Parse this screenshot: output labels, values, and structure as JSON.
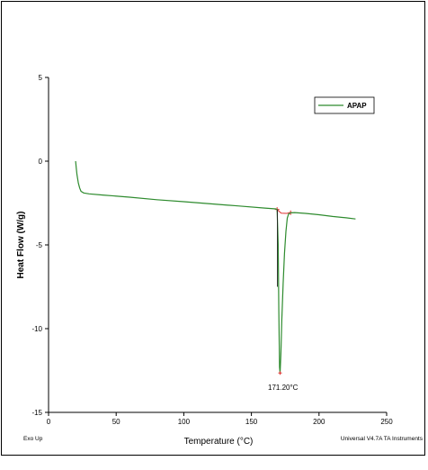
{
  "chart_data": {
    "type": "line",
    "xlabel": "Temperature (°C)",
    "ylabel": "Heat Flow (W/g)",
    "xlim": [
      0,
      250
    ],
    "ylim": [
      -15,
      5
    ],
    "x_ticks": [
      "0",
      "50",
      "100",
      "150",
      "200",
      "250"
    ],
    "y_ticks": [
      "5",
      "0",
      "-5",
      "-10",
      "-15"
    ],
    "x_tick_values": [
      0,
      50,
      100,
      150,
      200,
      250
    ],
    "y_tick_values": [
      5,
      0,
      -5,
      -10,
      -15
    ],
    "legend": {
      "placement": "top-right",
      "entries": [
        "APAP"
      ]
    },
    "grid": false,
    "series": [
      {
        "name": "APAP",
        "color": "#2e8b2e",
        "x": [
          20,
          20.5,
          21,
          22,
          23,
          24,
          26,
          30,
          40,
          60,
          80,
          100,
          120,
          140,
          160,
          168,
          169,
          169.8,
          170.3,
          170.8,
          171.2,
          171.8,
          172.5,
          173.5,
          174.5,
          175.5,
          176.5,
          177.5,
          179,
          182,
          190,
          200,
          210,
          220,
          227
        ],
        "y": [
          0.0,
          -0.4,
          -0.8,
          -1.3,
          -1.6,
          -1.8,
          -1.9,
          -1.95,
          -2.02,
          -2.15,
          -2.3,
          -2.42,
          -2.55,
          -2.67,
          -2.8,
          -2.85,
          -2.88,
          -5.0,
          -9.0,
          -12.3,
          -12.65,
          -11.5,
          -9.5,
          -7.3,
          -5.5,
          -4.2,
          -3.4,
          -3.15,
          -3.08,
          -3.07,
          -3.12,
          -3.2,
          -3.3,
          -3.38,
          -3.45
        ]
      }
    ],
    "annotations": [
      {
        "text": "171.20°C",
        "x": 171.2,
        "y": -12.65
      }
    ],
    "baseline_marker": {
      "color": "#e03030",
      "x": [
        169,
        172,
        176,
        179
      ],
      "y": [
        -2.88,
        -3.1,
        -3.12,
        -3.08
      ]
    }
  },
  "footer": {
    "left": "Exo Up",
    "right": "Universal V4.7A TA Instruments"
  }
}
